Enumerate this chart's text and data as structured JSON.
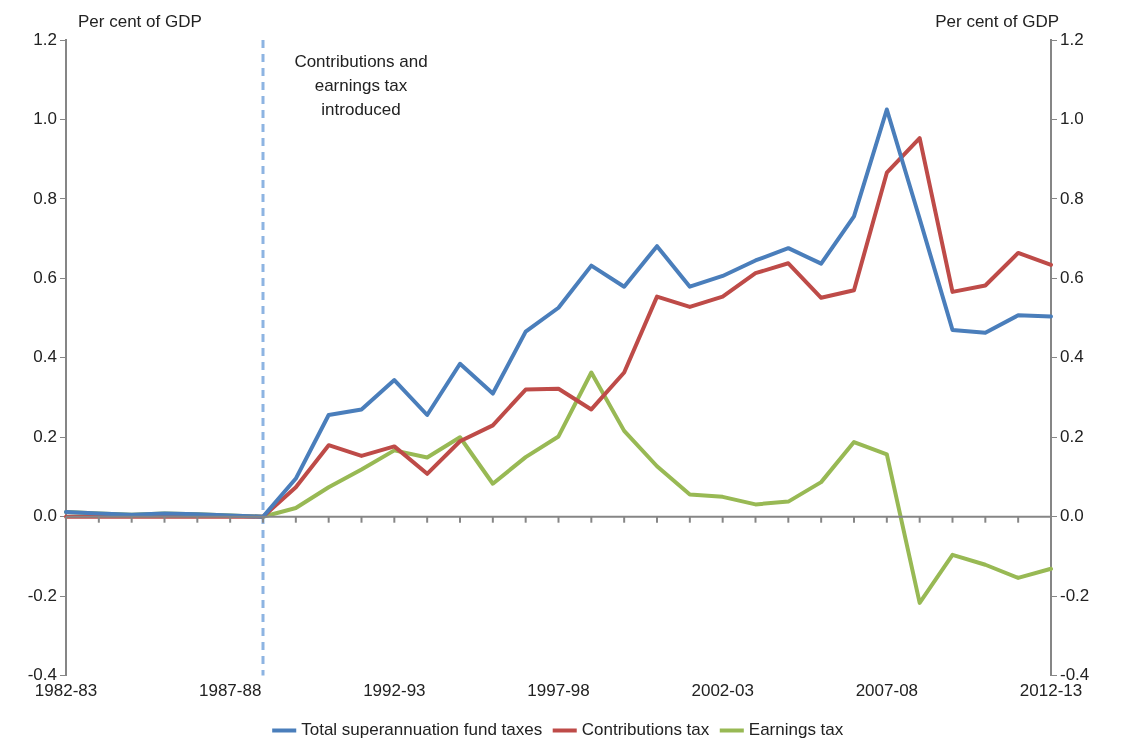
{
  "chart_data": {
    "type": "line",
    "ylabel": "Per cent of GDP",
    "y2label": "Per cent of GDP",
    "categories": [
      "1982-83",
      null,
      null,
      null,
      null,
      "1987-88",
      null,
      null,
      null,
      null,
      "1992-93",
      null,
      null,
      null,
      null,
      "1997-98",
      null,
      null,
      null,
      null,
      "2002-03",
      null,
      null,
      null,
      null,
      "2007-08",
      null,
      null,
      null,
      null,
      "2012-13"
    ],
    "series": [
      {
        "name": "Total superannuation fund taxes",
        "color": "#4a7ebb",
        "values": [
          0.012,
          0.008,
          0.005,
          0.008,
          0.006,
          0.003,
          0,
          0.096,
          0.256,
          0.27,
          0.344,
          0.256,
          0.385,
          0.31,
          0.466,
          0.526,
          0.632,
          0.579,
          0.681,
          0.579,
          0.606,
          0.645,
          0.676,
          0.637,
          0.756,
          1.025,
          0.75,
          0.47,
          0.463,
          0.507,
          0.504
        ]
      },
      {
        "name": "Contributions tax",
        "color": "#be4b48",
        "values": [
          0,
          0,
          0,
          0,
          0,
          0,
          0,
          0.074,
          0.18,
          0.153,
          0.177,
          0.108,
          0.19,
          0.23,
          0.32,
          0.322,
          0.27,
          0.363,
          0.554,
          0.528,
          0.554,
          0.613,
          0.638,
          0.551,
          0.57,
          0.866,
          0.953,
          0.566,
          0.582,
          0.664,
          0.634
        ]
      },
      {
        "name": "Earnings tax",
        "color": "#98b954",
        "values": [
          0.012,
          0.008,
          0.005,
          0.008,
          0.006,
          0.003,
          0,
          0.022,
          0.074,
          0.119,
          0.167,
          0.149,
          0.2,
          0.083,
          0.15,
          0.202,
          0.363,
          0.216,
          0.127,
          0.056,
          0.05,
          0.031,
          0.038,
          0.087,
          0.188,
          0.157,
          -0.217,
          -0.096,
          -0.121,
          -0.154,
          -0.131
        ]
      }
    ],
    "ylim": [
      -0.4,
      1.2
    ],
    "yticks": [
      {
        "value": -0.4,
        "label": "-0.4"
      },
      {
        "value": -0.2,
        "label": "-0.2"
      },
      {
        "value": 0,
        "label": "0.0"
      },
      {
        "value": 0.2,
        "label": "0.2"
      },
      {
        "value": 0.4,
        "label": "0.4"
      },
      {
        "value": 0.6,
        "label": "0.6"
      },
      {
        "value": 0.8,
        "label": "0.8"
      },
      {
        "value": 1,
        "label": "1.0"
      },
      {
        "value": 1.2,
        "label": "1.2"
      }
    ],
    "y2lim": [
      -0.4,
      1.2
    ],
    "y2ticks": [
      {
        "value": -0.4,
        "label": "-0.4"
      },
      {
        "value": -0.2,
        "label": "-0.2"
      },
      {
        "value": 0,
        "label": "0.0"
      },
      {
        "value": 0.2,
        "label": "0.2"
      },
      {
        "value": 0.4,
        "label": "0.4"
      },
      {
        "value": 0.6,
        "label": "0.6"
      },
      {
        "value": 0.8,
        "label": "0.8"
      },
      {
        "value": 1,
        "label": "1.0"
      },
      {
        "value": 1.2,
        "label": "1.2"
      }
    ],
    "annotations": [
      "Contributions and earnings tax introduced"
    ],
    "legend": "bottom",
    "grid": false,
    "marker": "none",
    "line_style": "solid"
  }
}
